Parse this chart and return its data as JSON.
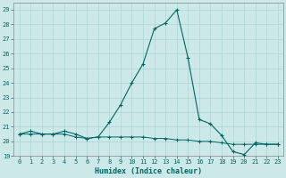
{
  "xlabel": "Humidex (Indice chaleur)",
  "background_color": "#cce8e8",
  "grid_color": "#aad4d4",
  "line_color": "#006666",
  "xlim": [
    -0.5,
    23.5
  ],
  "ylim": [
    19,
    29.5
  ],
  "yticks": [
    19,
    20,
    21,
    22,
    23,
    24,
    25,
    26,
    27,
    28,
    29
  ],
  "xticks": [
    0,
    1,
    2,
    3,
    4,
    5,
    6,
    7,
    8,
    9,
    10,
    11,
    12,
    13,
    14,
    15,
    16,
    17,
    18,
    19,
    20,
    21,
    22,
    23
  ],
  "series1_x": [
    0,
    1,
    2,
    3,
    4,
    5,
    6,
    7,
    8,
    9,
    10,
    11,
    12,
    13,
    14,
    15,
    16,
    17,
    18,
    19,
    20,
    21,
    22,
    23
  ],
  "series1_y": [
    20.5,
    20.7,
    20.5,
    20.5,
    20.7,
    20.5,
    20.2,
    20.3,
    21.3,
    22.5,
    24.0,
    25.3,
    27.7,
    28.1,
    29.0,
    25.7,
    21.5,
    21.2,
    20.4,
    19.3,
    19.1,
    19.9,
    19.8,
    19.8
  ],
  "series2_x": [
    0,
    1,
    2,
    3,
    4,
    5,
    6,
    7,
    8,
    9,
    10,
    11,
    12,
    13,
    14,
    15,
    16,
    17,
    18,
    19,
    20,
    21,
    22,
    23
  ],
  "series2_y": [
    20.5,
    20.5,
    20.5,
    20.5,
    20.5,
    20.3,
    20.2,
    20.3,
    20.3,
    20.3,
    20.3,
    20.3,
    20.2,
    20.2,
    20.1,
    20.1,
    20.0,
    20.0,
    19.9,
    19.8,
    19.8,
    19.8,
    19.8,
    19.8
  ],
  "label_fontsize": 5,
  "xlabel_fontsize": 6
}
